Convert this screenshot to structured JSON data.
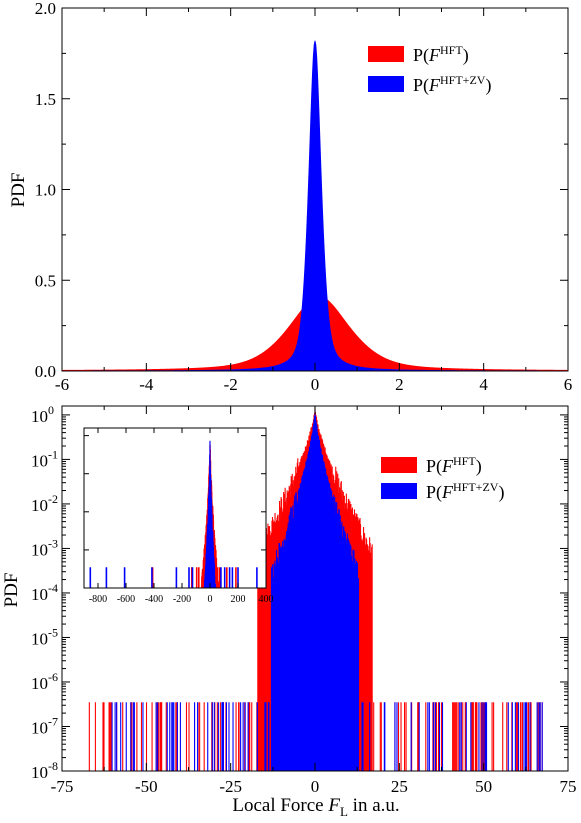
{
  "colors": {
    "hft": "#ff0000",
    "hft_zv": "#0000ff"
  },
  "legend_entries": {
    "hft": {
      "prefix": "P(",
      "symbol": "F",
      "superscript": "HFT",
      "suffix": ")"
    },
    "hft_zv": {
      "prefix": "P(",
      "symbol": "F",
      "superscript": "HFT+ZV",
      "suffix": ")"
    }
  },
  "chart_data": [
    {
      "type": "area",
      "ylabel": "PDF",
      "xlabel": "",
      "xlim": [
        -6,
        6
      ],
      "ylim": [
        0,
        2.0
      ],
      "xticks": [
        -6,
        -4,
        -2,
        0,
        2,
        4,
        6
      ],
      "xtick_labels": [
        "-6",
        "-4",
        "-2",
        "0",
        "2",
        "4",
        "6"
      ],
      "yticks": [
        0,
        0.5,
        1.0,
        1.5,
        2.0
      ],
      "ytick_labels": [
        "0.0",
        "0.5",
        "1.0",
        "1.5",
        "2.0"
      ],
      "legend_position": "top-right",
      "series": [
        {
          "name": "P(F^HFT)",
          "color": "#ff0000",
          "peak": 0.41,
          "peak_x": 0.1,
          "scale": 0.78,
          "shape": "lorentzian-gaussian"
        },
        {
          "name": "P(F^HFT+ZV)",
          "color": "#0000ff",
          "peak": 1.82,
          "peak_x": 0.0,
          "scale": 0.16,
          "shape": "lorentzian-gaussian"
        }
      ]
    },
    {
      "type": "histogram",
      "ylabel": "PDF",
      "xlabel": "Local Force F_L in a.u.",
      "xlabel_parts": {
        "prefix": "Local Force ",
        "symbol": "F",
        "subscript": "L",
        "suffix": " in a.u."
      },
      "xlim": [
        -75,
        75
      ],
      "ylim_log10": [
        -8,
        0.2
      ],
      "yscale": "log",
      "xticks": [
        -75,
        -50,
        -25,
        0,
        25,
        50,
        75
      ],
      "xtick_labels": [
        "-75",
        "-50",
        "-25",
        "0",
        "25",
        "50",
        "75"
      ],
      "yticks_exponent": [
        -8,
        -7,
        -6,
        -5,
        -4,
        -3,
        -2,
        -1,
        0
      ],
      "ytick_base": "10",
      "ytick_exponent_labels": [
        "-8",
        "-7",
        "-6",
        "-5",
        "-4",
        "-3",
        "-2",
        "-1",
        "0"
      ],
      "legend_position": "right",
      "series": [
        {
          "name": "P(F^HFT)",
          "color": "#ff0000",
          "peak": 1.4,
          "tail_level": 3.5e-07,
          "tail_extent": [
            -70,
            68
          ]
        },
        {
          "name": "P(F^HFT+ZV)",
          "color": "#0000ff",
          "peak": 1.4,
          "tail_level": 3.5e-07,
          "tail_extent": [
            -62,
            68
          ]
        }
      ],
      "inset": {
        "type": "histogram",
        "xlim": [
          -900,
          400
        ],
        "ylim_log10": [
          -4,
          0.2
        ],
        "yscale": "log",
        "xticks": [
          -800,
          -600,
          -400,
          -200,
          0,
          200,
          400
        ],
        "xtick_labels": [
          "-800",
          "-600",
          "-400",
          "-200",
          "0",
          "200",
          "400"
        ],
        "red_spikes_x": [
          -410,
          -130,
          -95,
          -80,
          55,
          70,
          120,
          185
        ],
        "blue_spikes_x": [
          -855,
          -740,
          -610,
          -415,
          -240,
          -150,
          -125,
          78,
          105,
          140,
          160,
          200,
          335
        ]
      }
    }
  ]
}
